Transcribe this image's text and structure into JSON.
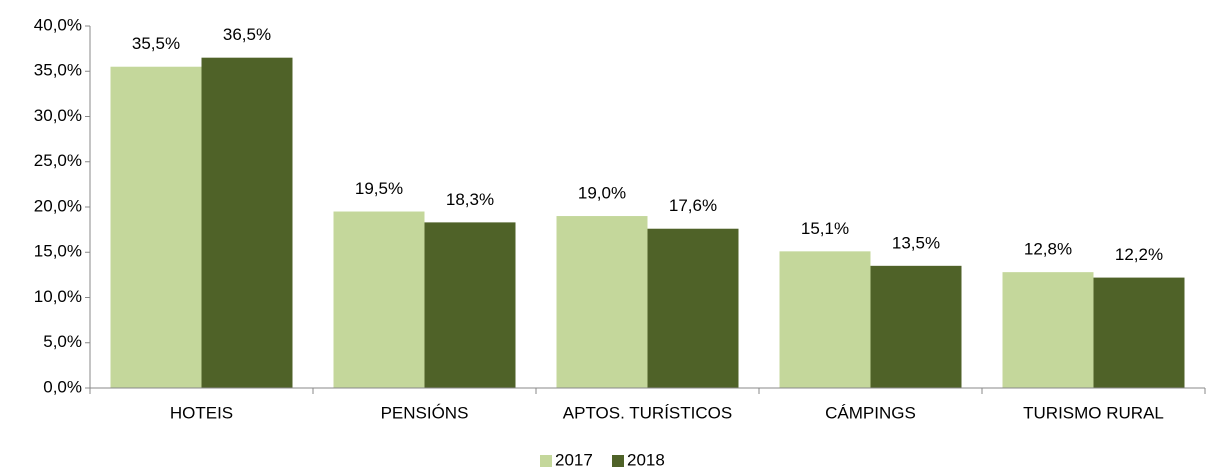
{
  "chart_data": {
    "type": "bar",
    "categories": [
      "HOTEIS",
      "PENSIÓNS",
      "APTOS. TURÍSTICOS",
      "CÁMPINGS",
      "TURISMO RURAL"
    ],
    "series": [
      {
        "name": "2017",
        "color": "#c4d79b",
        "values": [
          35.5,
          19.5,
          19.0,
          15.1,
          12.8
        ],
        "value_labels": [
          "35,5%",
          "19,5%",
          "19,0%",
          "15,1%",
          "12,8%"
        ]
      },
      {
        "name": "2018",
        "color": "#4f6228",
        "values": [
          36.5,
          18.3,
          17.6,
          13.5,
          12.2
        ],
        "value_labels": [
          "36,5%",
          "18,3%",
          "17,6%",
          "13,5%",
          "12,2%"
        ]
      }
    ],
    "ylim": [
      0,
      40
    ],
    "yticks": [
      {
        "value": 0,
        "label": "0,0%"
      },
      {
        "value": 5,
        "label": "5,0%"
      },
      {
        "value": 10,
        "label": "10,0%"
      },
      {
        "value": 15,
        "label": "15,0%"
      },
      {
        "value": 20,
        "label": "20,0%"
      },
      {
        "value": 25,
        "label": "25,0%"
      },
      {
        "value": 30,
        "label": "30,0%"
      },
      {
        "value": 35,
        "label": "35,0%"
      },
      {
        "value": 40,
        "label": "40,0%"
      }
    ],
    "legend": "bottom"
  }
}
